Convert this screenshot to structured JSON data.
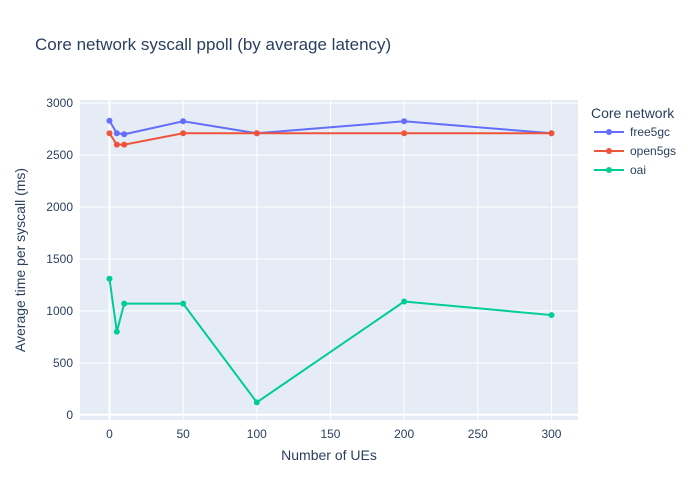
{
  "chart_data": {
    "type": "line",
    "title": "Core network syscall ppoll (by average latency)",
    "xlabel": "Number of UEs",
    "ylabel": "Average time per syscall (ms)",
    "xlim": [
      -20,
      318
    ],
    "ylim": [
      -50,
      3030
    ],
    "xticks": [
      0,
      50,
      100,
      150,
      200,
      250,
      300
    ],
    "yticks": [
      0,
      500,
      1000,
      1500,
      2000,
      2500,
      3000
    ],
    "grid": true,
    "legend": {
      "title": "Core network",
      "placement": "top-right"
    },
    "x": [
      0,
      5,
      10,
      50,
      100,
      200,
      300
    ],
    "series": [
      {
        "name": "free5gc",
        "color": "#636efa",
        "values": [
          2830,
          2710,
          2700,
          2825,
          2710,
          2825,
          2710
        ]
      },
      {
        "name": "open5gs",
        "color": "#ef553b",
        "values": [
          2710,
          2600,
          2600,
          2710,
          2710,
          2710,
          2710
        ]
      },
      {
        "name": "oai",
        "color": "#00cc96",
        "values": [
          1310,
          800,
          1070,
          1070,
          120,
          1090,
          960
        ]
      }
    ]
  }
}
